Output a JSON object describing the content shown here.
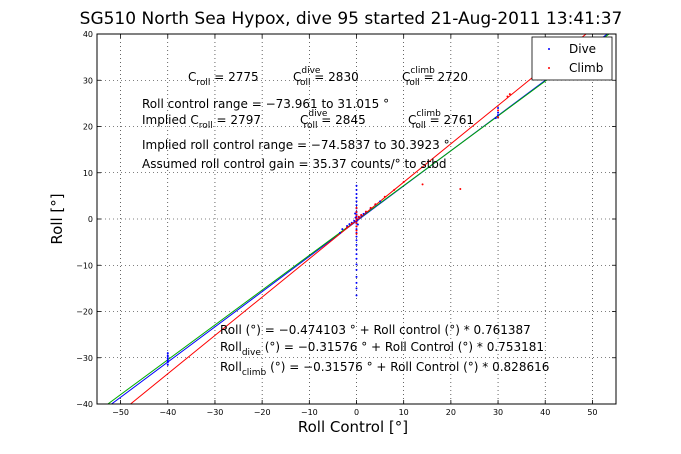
{
  "chart_data": {
    "type": "scatter",
    "title": "SG510 North Sea Hypox, dive 95 started 21-Aug-2011 13:41:37",
    "xlabel": "Roll Control [°]",
    "ylabel": "Roll [°]",
    "xlim": [
      -55,
      55
    ],
    "ylim": [
      -40,
      40
    ],
    "xticks": [
      -50,
      -40,
      -30,
      -20,
      -10,
      0,
      10,
      20,
      30,
      40,
      50
    ],
    "yticks": [
      -40,
      -30,
      -20,
      -10,
      0,
      10,
      20,
      30,
      40
    ],
    "xtick_labels": [
      "−50",
      "−40",
      "−30",
      "−20",
      "−10",
      "0",
      "10",
      "20",
      "30",
      "40",
      "50"
    ],
    "ytick_labels": [
      "−40",
      "−30",
      "−20",
      "−10",
      "0",
      "10",
      "20",
      "30",
      "40"
    ],
    "grid": true,
    "legend": {
      "placement": "top-right",
      "entries": [
        {
          "name": "Dive",
          "color": "#0000ff"
        },
        {
          "name": "Climb",
          "color": "#ff0000"
        }
      ]
    },
    "series": [
      {
        "name": "Dive",
        "color": "#0000ff",
        "points": [
          [
            -40,
            -31.5
          ],
          [
            -40,
            -31
          ],
          [
            -40,
            -30.6
          ],
          [
            -40,
            -30.2
          ],
          [
            -40,
            -29.8
          ],
          [
            -40,
            -29.5
          ],
          [
            -40,
            -29
          ],
          [
            -40,
            -30.8
          ],
          [
            0,
            0
          ],
          [
            0,
            0.5
          ],
          [
            0,
            -0.5
          ],
          [
            0,
            1
          ],
          [
            0,
            -1
          ],
          [
            0,
            1.6
          ],
          [
            0,
            -1.6
          ],
          [
            0,
            2.3
          ],
          [
            0,
            -2.2
          ],
          [
            0,
            3
          ],
          [
            0,
            -3
          ],
          [
            0,
            3.8
          ],
          [
            0,
            -3.8
          ],
          [
            0,
            4.6
          ],
          [
            0,
            -4.6
          ],
          [
            0,
            5.4
          ],
          [
            0,
            -5.6
          ],
          [
            0,
            6.3
          ],
          [
            0,
            -6.6
          ],
          [
            0,
            7.2
          ],
          [
            0,
            -7.6
          ],
          [
            0,
            -8.6
          ],
          [
            0,
            -9.8
          ],
          [
            0,
            -11
          ],
          [
            0,
            -12.5
          ],
          [
            0,
            -13.8
          ],
          [
            0,
            -15
          ],
          [
            0,
            -16.5
          ],
          [
            -0.2,
            0.3
          ],
          [
            0.2,
            -0.3
          ],
          [
            -0.3,
            1.2
          ],
          [
            0.3,
            -1.2
          ],
          [
            0.5,
            0.4
          ],
          [
            1,
            0.7
          ],
          [
            1.5,
            1.1
          ],
          [
            -0.5,
            -0.4
          ],
          [
            -1,
            -0.8
          ],
          [
            -1.5,
            -1.1
          ],
          [
            -2,
            -1.5
          ],
          [
            -3,
            -2.2
          ],
          [
            -3.5,
            -3
          ],
          [
            2,
            1.5
          ],
          [
            3,
            2.3
          ],
          [
            4,
            3.1
          ],
          [
            5,
            3.8
          ],
          [
            30,
            22
          ],
          [
            30,
            23
          ],
          [
            30,
            24
          ],
          [
            30,
            22.5
          ],
          [
            29.5,
            21.8
          ]
        ]
      },
      {
        "name": "Climb",
        "color": "#ff0000",
        "points": [
          [
            0,
            0.2
          ],
          [
            0,
            -0.3
          ],
          [
            0,
            0.8
          ],
          [
            0,
            -0.9
          ],
          [
            0,
            1.5
          ],
          [
            0,
            -1.6
          ],
          [
            0,
            2.4
          ],
          [
            0,
            -2.5
          ],
          [
            0,
            -3.2
          ],
          [
            0.5,
            0.5
          ],
          [
            1,
            0.9
          ],
          [
            2,
            1.6
          ],
          [
            3,
            2.4
          ],
          [
            4,
            3.2
          ],
          [
            6,
            4.8
          ],
          [
            8,
            6.3
          ],
          [
            10,
            8
          ],
          [
            -1,
            -1
          ],
          [
            -2,
            -1.8
          ],
          [
            14,
            7.5
          ],
          [
            22,
            6.5
          ],
          [
            32,
            26.5
          ],
          [
            32.5,
            27
          ],
          [
            30,
            23.5
          ],
          [
            30,
            22
          ]
        ]
      }
    ],
    "fit_lines": [
      {
        "name": "Roll",
        "color": "#0000ff",
        "intercept": -0.474103,
        "slope": 0.761387
      },
      {
        "name": "Roll dive",
        "color": "#00aa00",
        "intercept": -0.31576,
        "slope": 0.753181
      },
      {
        "name": "Roll climb",
        "color": "#ff0000",
        "intercept": -0.31576,
        "slope": 0.828616
      }
    ],
    "annotations": [
      {
        "main": "C",
        "sub": "roll",
        "text": " = 2775"
      },
      {
        "main": "C",
        "sub": "roll",
        "sup": "dive",
        "text": " = 2830"
      },
      {
        "main": "C",
        "sub": "roll",
        "sup": "climb",
        "text": " = 2720"
      },
      {
        "text": "Roll control range = −73.961 to 31.015 °"
      },
      {
        "text": "Implied C",
        "sub": "roll",
        "text2": " = 2797"
      },
      {
        "main": "C",
        "sub": "roll",
        "sup": "dive",
        "text": " = 2845"
      },
      {
        "main": "C",
        "sub": "roll",
        "sup": "climb",
        "text": " = 2761"
      },
      {
        "text": "Implied roll control range = −74.5837 to 30.3923 °"
      },
      {
        "text": "Assumed roll control gain = 35.37 counts/° to stbd"
      },
      {
        "text": "Roll (°) = −0.474103 ° + Roll control (°) * 0.761387"
      },
      {
        "main": "Roll",
        "sub": "dive",
        "text": " (°) = −0.31576 ° + Roll Control (°) * 0.753181"
      },
      {
        "main": "Roll",
        "sub": "climb",
        "text": " (°) = −0.31576 ° + Roll Control (°) * 0.828616"
      }
    ]
  }
}
